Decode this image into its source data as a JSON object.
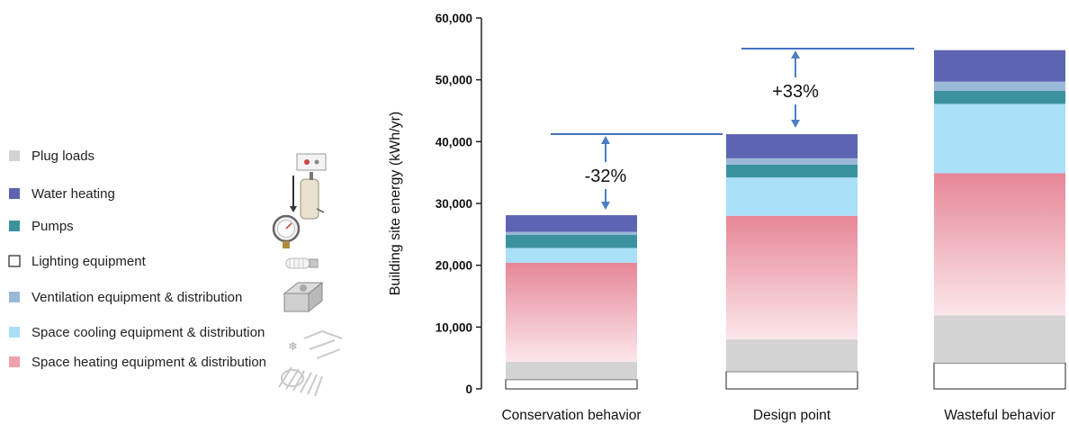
{
  "chart_data": {
    "type": "bar",
    "stacked": true,
    "ylabel": "Building site energy (kWh/yr)",
    "xlabel": "",
    "ylim": [
      0,
      60000
    ],
    "y_ticks": [
      0,
      10000,
      20000,
      30000,
      40000,
      50000,
      60000
    ],
    "y_tick_labels": [
      "0",
      "10,000",
      "20,000",
      "30,000",
      "40,000",
      "50,000",
      "60,000"
    ],
    "categories": [
      "Conservation behavior",
      "Design point",
      "Wasteful behavior"
    ],
    "series": [
      {
        "name": "Lighting equipment",
        "color": "#ffffff",
        "values": [
          1500,
          2800,
          4200
        ]
      },
      {
        "name": "Plug loads",
        "color": "#d3d3d3",
        "values": [
          2900,
          5200,
          7700
        ]
      },
      {
        "name": "Space heating equipment & distribution",
        "color": "#e78797",
        "values": [
          16000,
          20000,
          23000
        ]
      },
      {
        "name": "Space cooling equipment & distribution",
        "color": "#aadff8",
        "values": [
          2400,
          6200,
          11200
        ]
      },
      {
        "name": "Pumps",
        "color": "#3b929f",
        "values": [
          2100,
          2100,
          2100
        ]
      },
      {
        "name": "Ventilation equipment & distribution",
        "color": "#9ab8d8",
        "values": [
          500,
          1000,
          1500
        ]
      },
      {
        "name": "Water heating",
        "color": "#5d64b2",
        "values": [
          2700,
          3900,
          5100
        ]
      }
    ],
    "legend_order": [
      "Plug loads",
      "Water heating",
      "Pumps",
      "Lighting equipment",
      "Ventilation equipment & distribution",
      "Space cooling equipment & distribution",
      "Space heating equipment & distribution"
    ],
    "legend_position": "left",
    "grid": false,
    "annotations": [
      {
        "text": "-32%",
        "between": [
          "Conservation behavior",
          "Design point"
        ]
      },
      {
        "text": "+33%",
        "between": [
          "Design point",
          "Wasteful behavior"
        ]
      }
    ]
  },
  "icons": [
    "water-heater-icon",
    "pressure-gauge-icon",
    "cfl-bulb-icon",
    "ac-unit-icon",
    "duct-system-icon"
  ]
}
